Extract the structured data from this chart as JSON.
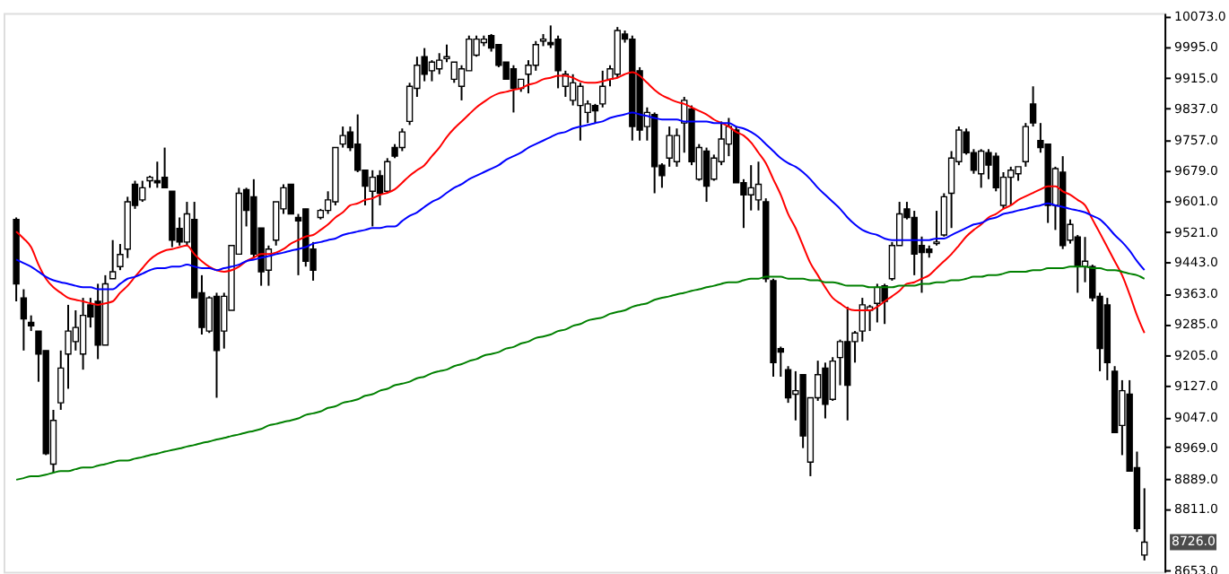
{
  "chart_data": {
    "type": "candlestick",
    "tick_labels": "y",
    "categories": [
      null,
      null,
      null,
      null,
      null,
      null,
      null,
      null,
      null,
      null,
      null,
      null,
      null,
      null,
      null,
      null,
      null,
      null,
      null,
      null,
      null,
      null,
      null,
      null,
      null,
      null,
      null,
      null,
      null,
      null,
      null,
      null,
      null,
      null,
      null,
      null,
      null,
      null,
      null,
      null,
      null,
      null,
      null,
      null,
      null,
      null,
      null,
      null,
      null,
      null,
      null,
      null,
      null,
      null,
      null,
      null,
      null,
      null,
      null,
      null,
      null,
      null,
      null,
      null,
      null,
      null,
      null,
      null,
      null,
      null,
      null,
      null,
      null,
      null,
      null,
      null,
      null,
      null,
      null,
      null,
      null,
      null,
      null,
      null,
      null,
      null,
      null,
      null,
      null,
      null,
      null,
      null,
      null,
      null,
      null,
      null,
      null,
      null,
      null,
      null,
      null,
      null,
      null,
      null,
      null,
      null,
      null,
      null,
      null,
      null,
      null,
      null,
      null,
      null,
      null,
      null,
      null,
      null,
      null,
      null,
      null,
      null,
      null,
      null,
      null,
      null,
      null,
      null,
      null,
      null,
      null,
      null,
      null,
      null,
      null,
      null,
      null,
      null,
      null,
      null,
      null,
      null,
      null,
      null,
      null,
      null,
      null,
      null,
      null,
      null,
      null,
      null,
      null
    ],
    "ohlc": [
      [
        9553,
        9558,
        9343,
        9388
      ],
      [
        9352,
        9374,
        9217,
        9298
      ],
      [
        9289,
        9307,
        9267,
        9280
      ],
      [
        9267,
        9267,
        9137,
        9208
      ],
      [
        9217,
        9217,
        8949,
        8953
      ],
      [
        8926,
        9065,
        8904,
        9038
      ],
      [
        9083,
        9217,
        9065,
        9172
      ],
      [
        9208,
        9334,
        9119,
        9267
      ],
      [
        9240,
        9320,
        9217,
        9276
      ],
      [
        9208,
        9352,
        9168,
        9307
      ],
      [
        9334,
        9352,
        9276,
        9303
      ],
      [
        9343,
        9388,
        9195,
        9231
      ],
      [
        9231,
        9410,
        9231,
        9388
      ],
      [
        9401,
        9500,
        9401,
        9419
      ],
      [
        9432,
        9490,
        9423,
        9463
      ],
      [
        9477,
        9611,
        9454,
        9598
      ],
      [
        9643,
        9652,
        9580,
        9589
      ],
      [
        9603,
        9652,
        9598,
        9634
      ],
      [
        9652,
        9665,
        9634,
        9661
      ],
      [
        9652,
        9701,
        9634,
        9647
      ],
      [
        9661,
        9737,
        9634,
        9634
      ],
      [
        9625,
        9625,
        9482,
        9500
      ],
      [
        9530,
        9558,
        9486,
        9495
      ],
      [
        9495,
        9598,
        9486,
        9567
      ],
      [
        9553,
        9598,
        9352,
        9352
      ],
      [
        9365,
        9410,
        9258,
        9276
      ],
      [
        9267,
        9356,
        9262,
        9352
      ],
      [
        9356,
        9365,
        9096,
        9217
      ],
      [
        9267,
        9365,
        9222,
        9356
      ],
      [
        9320,
        9486,
        9320,
        9486
      ],
      [
        9464,
        9634,
        9464,
        9620
      ],
      [
        9629,
        9634,
        9535,
        9576
      ],
      [
        9611,
        9656,
        9455,
        9464
      ],
      [
        9531,
        9531,
        9383,
        9419
      ],
      [
        9423,
        9486,
        9383,
        9477
      ],
      [
        9500,
        9598,
        9486,
        9598
      ],
      [
        9580,
        9643,
        9567,
        9634
      ],
      [
        9643,
        9643,
        9567,
        9567
      ],
      [
        9558,
        9567,
        9410,
        9549
      ],
      [
        9580,
        9580,
        9432,
        9446
      ],
      [
        9477,
        9495,
        9396,
        9423
      ],
      [
        9558,
        9580,
        9553,
        9576
      ],
      [
        9576,
        9625,
        9567,
        9603
      ],
      [
        9598,
        9737,
        9589,
        9737
      ],
      [
        9746,
        9791,
        9737,
        9768
      ],
      [
        9777,
        9791,
        9728,
        9737
      ],
      [
        9746,
        9822,
        9674,
        9679
      ],
      [
        9679,
        9679,
        9589,
        9638
      ],
      [
        9625,
        9679,
        9535,
        9661
      ],
      [
        9665,
        9679,
        9589,
        9620
      ],
      [
        9625,
        9710,
        9620,
        9701
      ],
      [
        9737,
        9746,
        9710,
        9715
      ],
      [
        9737,
        9786,
        9728,
        9777
      ],
      [
        9804,
        9903,
        9795,
        9894
      ],
      [
        9889,
        9970,
        9867,
        9948
      ],
      [
        9970,
        9992,
        9907,
        9925
      ],
      [
        9934,
        9961,
        9907,
        9956
      ],
      [
        9939,
        9979,
        9925,
        9961
      ],
      [
        9965,
        10001,
        9956,
        9970
      ],
      [
        9912,
        9956,
        9903,
        9956
      ],
      [
        9894,
        9948,
        9858,
        9939
      ],
      [
        9934,
        10024,
        9934,
        10015
      ],
      [
        9974,
        10024,
        9970,
        10015
      ],
      [
        10006,
        10024,
        9997,
        10015
      ],
      [
        10024,
        10028,
        9983,
        9992
      ],
      [
        10001,
        10001,
        9943,
        9948
      ],
      [
        9956,
        9956,
        9912,
        9912
      ],
      [
        9939,
        9948,
        9827,
        9889
      ],
      [
        9889,
        9912,
        9880,
        9912
      ],
      [
        9925,
        9961,
        9876,
        9948
      ],
      [
        9948,
        10010,
        9934,
        10001
      ],
      [
        10010,
        10028,
        9997,
        10015
      ],
      [
        10006,
        10050,
        9992,
        10001
      ],
      [
        10015,
        10024,
        9889,
        9934
      ],
      [
        9894,
        9934,
        9867,
        9925
      ],
      [
        9858,
        9925,
        9845,
        9903
      ],
      [
        9845,
        9903,
        9755,
        9894
      ],
      [
        9827,
        9858,
        9800,
        9849
      ],
      [
        9845,
        9849,
        9800,
        9831
      ],
      [
        9849,
        9934,
        9840,
        9894
      ],
      [
        9912,
        9948,
        9894,
        9939
      ],
      [
        9925,
        10046,
        9916,
        10037
      ],
      [
        10028,
        10037,
        10006,
        10015
      ],
      [
        10015,
        10024,
        9755,
        9791
      ],
      [
        9934,
        9943,
        9755,
        9782
      ],
      [
        9791,
        9840,
        9755,
        9827
      ],
      [
        9822,
        9827,
        9620,
        9688
      ],
      [
        9692,
        9697,
        9634,
        9665
      ],
      [
        9710,
        9791,
        9688,
        9768
      ],
      [
        9701,
        9786,
        9688,
        9768
      ],
      [
        9800,
        9867,
        9724,
        9858
      ],
      [
        9836,
        9845,
        9692,
        9701
      ],
      [
        9656,
        9746,
        9652,
        9737
      ],
      [
        9728,
        9737,
        9598,
        9638
      ],
      [
        9656,
        9719,
        9652,
        9710
      ],
      [
        9701,
        9804,
        9692,
        9759
      ],
      [
        9746,
        9813,
        9715,
        9791
      ],
      [
        9782,
        9791,
        9647,
        9647
      ],
      [
        9647,
        9656,
        9531,
        9616
      ],
      [
        9616,
        9692,
        9576,
        9634
      ],
      [
        9603,
        9701,
        9576,
        9643
      ],
      [
        9598,
        9607,
        9392,
        9401
      ],
      [
        9396,
        9401,
        9150,
        9186
      ],
      [
        9222,
        9227,
        9150,
        9213
      ],
      [
        9168,
        9177,
        9083,
        9096
      ],
      [
        9105,
        9164,
        9038,
        9114
      ],
      [
        9155,
        9155,
        8967,
        8998
      ],
      [
        8931,
        9096,
        8895,
        9096
      ],
      [
        9096,
        9191,
        9088,
        9155
      ],
      [
        9172,
        9186,
        9043,
        9079
      ],
      [
        9092,
        9200,
        9088,
        9190
      ],
      [
        9199,
        9245,
        9128,
        9240
      ],
      [
        9240,
        9329,
        9038,
        9128
      ],
      [
        9240,
        9267,
        9186,
        9262
      ],
      [
        9267,
        9352,
        9240,
        9334
      ],
      [
        9320,
        9334,
        9267,
        9329
      ],
      [
        9338,
        9388,
        9289,
        9379
      ],
      [
        9383,
        9388,
        9285,
        9343
      ],
      [
        9401,
        9495,
        9396,
        9486
      ],
      [
        9486,
        9598,
        9486,
        9567
      ],
      [
        9580,
        9598,
        9553,
        9558
      ],
      [
        9558,
        9575,
        9410,
        9464
      ],
      [
        9486,
        9509,
        9365,
        9468
      ],
      [
        9477,
        9486,
        9455,
        9468
      ],
      [
        9491,
        9575,
        9486,
        9495
      ],
      [
        9513,
        9620,
        9509,
        9611
      ],
      [
        9620,
        9728,
        9531,
        9710
      ],
      [
        9701,
        9791,
        9692,
        9782
      ],
      [
        9777,
        9786,
        9719,
        9724
      ],
      [
        9724,
        9733,
        9670,
        9679
      ],
      [
        9670,
        9733,
        9634,
        9728
      ],
      [
        9724,
        9733,
        9656,
        9692
      ],
      [
        9715,
        9724,
        9625,
        9634
      ],
      [
        9589,
        9674,
        9580,
        9661
      ],
      [
        9661,
        9688,
        9589,
        9679
      ],
      [
        9670,
        9688,
        9652,
        9688
      ],
      [
        9701,
        9800,
        9688,
        9791
      ],
      [
        9849,
        9894,
        9791,
        9800
      ],
      [
        9755,
        9800,
        9724,
        9737
      ],
      [
        9746,
        9746,
        9544,
        9589
      ],
      [
        9589,
        9688,
        9526,
        9683
      ],
      [
        9674,
        9715,
        9477,
        9486
      ],
      [
        9500,
        9553,
        9491,
        9540
      ],
      [
        9508,
        9513,
        9365,
        9432
      ],
      [
        9432,
        9508,
        9392,
        9446
      ],
      [
        9432,
        9437,
        9343,
        9352
      ],
      [
        9356,
        9365,
        9164,
        9222
      ],
      [
        9334,
        9352,
        9141,
        9186
      ],
      [
        9164,
        9177,
        9007,
        9007
      ],
      [
        9025,
        9141,
        8949,
        9114
      ],
      [
        9105,
        9141,
        8908,
        8908
      ],
      [
        8917,
        8958,
        8752,
        8761
      ],
      [
        8693,
        8864,
        8679,
        8726
      ]
    ],
    "series": [
      {
        "type": "line",
        "color": "#ff0000",
        "values": [
          9522,
          9504,
          9482,
          9437,
          9401,
          9379,
          9365,
          9352,
          9347,
          9343,
          9338,
          9334,
          9338,
          9343,
          9365,
          9383,
          9406,
          9428,
          9450,
          9464,
          9473,
          9477,
          9482,
          9486,
          9464,
          9446,
          9432,
          9423,
          9419,
          9423,
          9432,
          9446,
          9455,
          9464,
          9464,
          9468,
          9477,
          9491,
          9500,
          9509,
          9513,
          9526,
          9540,
          9558,
          9571,
          9589,
          9594,
          9603,
          9607,
          9616,
          9621,
          9630,
          9647,
          9665,
          9679,
          9692,
          9715,
          9737,
          9764,
          9786,
          9804,
          9822,
          9840,
          9854,
          9867,
          9876,
          9880,
          9885,
          9889,
          9898,
          9903,
          9912,
          9916,
          9921,
          9921,
          9916,
          9907,
          9903,
          9903,
          9907,
          9912,
          9916,
          9925,
          9930,
          9921,
          9903,
          9885,
          9871,
          9862,
          9854,
          9849,
          9840,
          9831,
          9822,
          9809,
          9800,
          9791,
          9777,
          9768,
          9750,
          9724,
          9697,
          9656,
          9616,
          9567,
          9531,
          9486,
          9441,
          9410,
          9379,
          9352,
          9338,
          9325,
          9320,
          9320,
          9320,
          9329,
          9343,
          9356,
          9370,
          9388,
          9392,
          9401,
          9410,
          9428,
          9446,
          9464,
          9486,
          9509,
          9526,
          9540,
          9558,
          9567,
          9580,
          9589,
          9603,
          9612,
          9621,
          9630,
          9638,
          9638,
          9625,
          9616,
          9603,
          9589,
          9553,
          9518,
          9482,
          9446,
          9410,
          9361,
          9307,
          9262
        ]
      },
      {
        "type": "line",
        "color": "#0000ff",
        "values": [
          9450,
          9441,
          9432,
          9419,
          9406,
          9397,
          9392,
          9388,
          9383,
          9379,
          9379,
          9374,
          9374,
          9374,
          9388,
          9401,
          9406,
          9414,
          9423,
          9428,
          9428,
          9432,
          9432,
          9437,
          9432,
          9428,
          9428,
          9423,
          9428,
          9432,
          9437,
          9446,
          9450,
          9455,
          9459,
          9464,
          9468,
          9473,
          9477,
          9482,
          9491,
          9495,
          9500,
          9504,
          9513,
          9518,
          9522,
          9526,
          9531,
          9531,
          9535,
          9535,
          9549,
          9562,
          9571,
          9585,
          9598,
          9607,
          9621,
          9634,
          9643,
          9656,
          9665,
          9674,
          9683,
          9692,
          9706,
          9715,
          9724,
          9737,
          9746,
          9755,
          9764,
          9773,
          9777,
          9786,
          9791,
          9795,
          9800,
          9804,
          9813,
          9818,
          9822,
          9827,
          9822,
          9818,
          9813,
          9809,
          9809,
          9809,
          9804,
          9804,
          9804,
          9804,
          9800,
          9800,
          9800,
          9791,
          9786,
          9777,
          9764,
          9746,
          9728,
          9710,
          9697,
          9688,
          9674,
          9656,
          9634,
          9616,
          9598,
          9580,
          9558,
          9540,
          9526,
          9518,
          9513,
          9504,
          9500,
          9500,
          9500,
          9500,
          9500,
          9500,
          9504,
          9504,
          9513,
          9522,
          9531,
          9540,
          9544,
          9553,
          9558,
          9567,
          9571,
          9576,
          9580,
          9585,
          9589,
          9594,
          9589,
          9585,
          9580,
          9576,
          9571,
          9562,
          9553,
          9535,
          9513,
          9495,
          9473,
          9446,
          9423
        ]
      },
      {
        "type": "line",
        "color": "#008000",
        "values": [
          8886,
          8890,
          8895,
          8895,
          8899,
          8904,
          8908,
          8908,
          8913,
          8917,
          8917,
          8922,
          8926,
          8931,
          8935,
          8935,
          8940,
          8944,
          8949,
          8953,
          8958,
          8962,
          8966,
          8971,
          8975,
          8980,
          8984,
          8989,
          8993,
          8998,
          9002,
          9007,
          9011,
          9016,
          9025,
          9029,
          9034,
          9038,
          9043,
          9052,
          9056,
          9061,
          9070,
          9074,
          9083,
          9087,
          9092,
          9101,
          9105,
          9114,
          9119,
          9128,
          9132,
          9137,
          9146,
          9150,
          9159,
          9164,
          9168,
          9177,
          9182,
          9190,
          9195,
          9204,
          9208,
          9213,
          9222,
          9226,
          9235,
          9240,
          9249,
          9253,
          9258,
          9267,
          9271,
          9280,
          9285,
          9294,
          9298,
          9302,
          9311,
          9316,
          9320,
          9329,
          9334,
          9338,
          9347,
          9352,
          9356,
          9361,
          9365,
          9370,
          9374,
          9379,
          9383,
          9388,
          9392,
          9392,
          9397,
          9401,
          9401,
          9406,
          9406,
          9406,
          9401,
          9401,
          9401,
          9397,
          9397,
          9392,
          9392,
          9388,
          9383,
          9383,
          9383,
          9379,
          9379,
          9379,
          9379,
          9383,
          9383,
          9383,
          9388,
          9388,
          9392,
          9392,
          9397,
          9397,
          9401,
          9406,
          9406,
          9410,
          9410,
          9414,
          9419,
          9419,
          9419,
          9423,
          9423,
          9428,
          9428,
          9428,
          9432,
          9432,
          9432,
          9428,
          9428,
          9423,
          9423,
          9419,
          9414,
          9410,
          9401
        ]
      }
    ],
    "ylim": [
      8650,
      10082
    ],
    "yticks": [
      {
        "value": 10073,
        "label": "10073.0"
      },
      {
        "value": 9995,
        "label": "9995.0"
      },
      {
        "value": 9915,
        "label": "9915.0"
      },
      {
        "value": 9837,
        "label": "9837.0"
      },
      {
        "value": 9757,
        "label": "9757.0"
      },
      {
        "value": 9679,
        "label": "9679.0"
      },
      {
        "value": 9601,
        "label": "9601.0"
      },
      {
        "value": 9521,
        "label": "9521.0"
      },
      {
        "value": 9443,
        "label": "9443.0"
      },
      {
        "value": 9363,
        "label": "9363.0"
      },
      {
        "value": 9285,
        "label": "9285.0"
      },
      {
        "value": 9205,
        "label": "9205.0"
      },
      {
        "value": 9127,
        "label": "9127.0"
      },
      {
        "value": 9047,
        "label": "9047.0"
      },
      {
        "value": 8969,
        "label": "8969.0"
      },
      {
        "value": 8889,
        "label": "8889.0"
      },
      {
        "value": 8811,
        "label": "8811.0"
      },
      {
        "value": 8653,
        "label": "8653.0"
      }
    ],
    "annotations": [
      {
        "text": "8726.0",
        "y": 8726
      }
    ]
  }
}
